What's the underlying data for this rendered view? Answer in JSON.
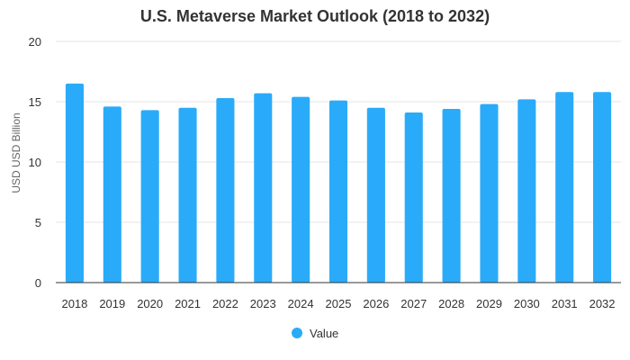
{
  "chart_data": {
    "type": "bar",
    "title": "U.S. Metaverse Market Outlook (2018 to 2032)",
    "xlabel": "",
    "ylabel": "USD USD Billion",
    "categories": [
      "2018",
      "2019",
      "2020",
      "2021",
      "2022",
      "2023",
      "2024",
      "2025",
      "2026",
      "2027",
      "2028",
      "2029",
      "2030",
      "2031",
      "2032"
    ],
    "series": [
      {
        "name": "Value",
        "values": [
          16.5,
          14.6,
          14.3,
          14.5,
          15.3,
          15.7,
          15.4,
          15.1,
          14.5,
          14.1,
          14.4,
          14.8,
          15.2,
          15.8,
          15.8
        ]
      }
    ],
    "ylim": [
      0,
      20
    ],
    "yticks": [
      0,
      5,
      10,
      15,
      20
    ],
    "grid": true,
    "legend_position": "bottom",
    "colors": {
      "bar": "#2aabf9",
      "grid": "#e6e6e6",
      "axis": "#333333"
    }
  }
}
